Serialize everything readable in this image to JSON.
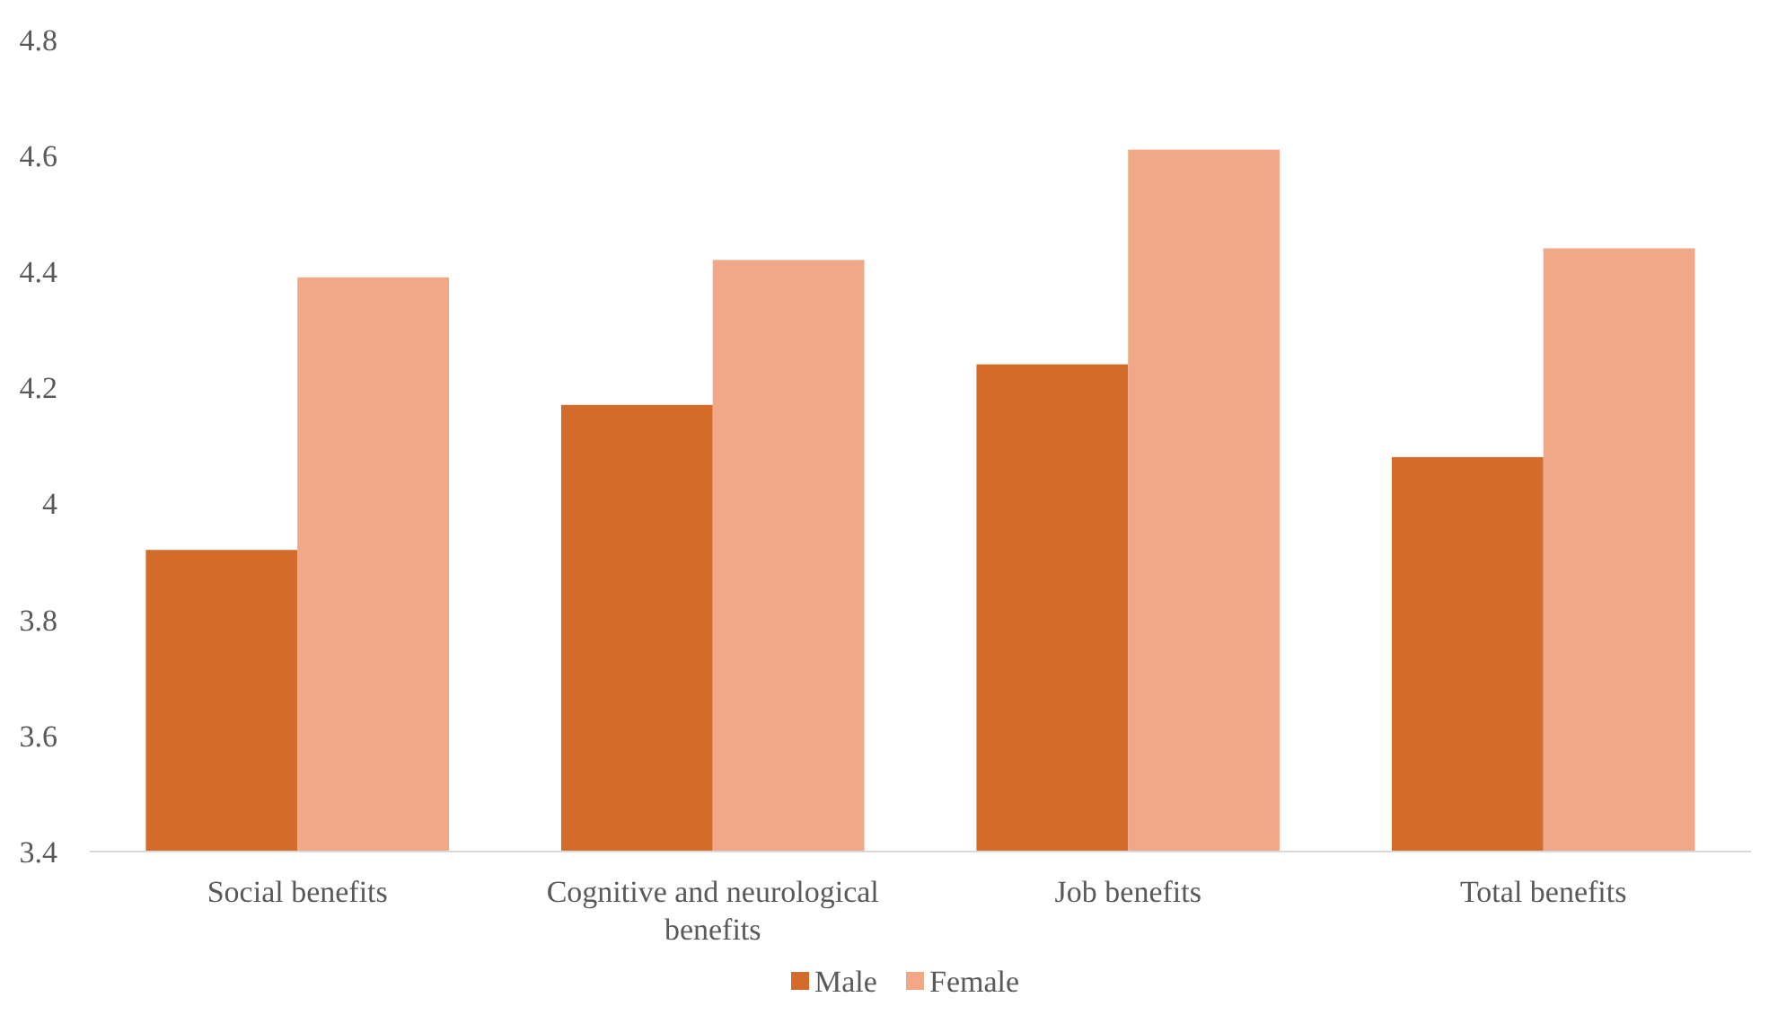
{
  "chart_data": {
    "type": "bar",
    "categories": [
      "Social benefits",
      "Cognitive and neurological benefits",
      "Job benefits",
      "Total benefits"
    ],
    "series": [
      {
        "name": "Male",
        "color": "#d36c2a",
        "values": [
          3.92,
          4.17,
          4.24,
          4.08
        ]
      },
      {
        "name": "Female",
        "color": "#f0a889",
        "values": [
          4.39,
          4.42,
          4.61,
          4.44
        ]
      }
    ],
    "ylim": [
      3.4,
      4.8
    ],
    "yticks": [
      3.4,
      3.6,
      3.8,
      4,
      4.2,
      4.4,
      4.6,
      4.8
    ],
    "grid": false,
    "legend": "bottom"
  }
}
